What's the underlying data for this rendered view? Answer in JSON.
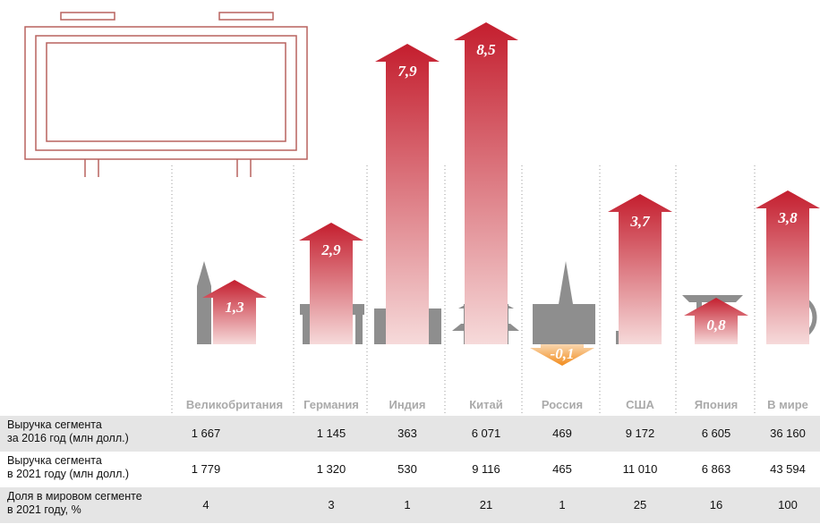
{
  "chart_data": {
    "type": "arrow",
    "categories": [
      "Великобритания",
      "Германия",
      "Индия",
      "Китай",
      "Россия",
      "США",
      "Япония",
      "В мире"
    ],
    "values": [
      1.3,
      2.9,
      7.9,
      8.5,
      -0.1,
      3.7,
      0.8,
      3.8
    ],
    "value_labels": [
      "1,3",
      "2,9",
      "7,9",
      "8,5",
      "-0,1",
      "3,7",
      "0,8",
      "3,8"
    ],
    "color": "#c41e2e",
    "negative_color": "#f28c1c"
  },
  "table": {
    "rows": [
      {
        "label": "Выручка сегмента\nза 2016 год (млн долл.)",
        "cells": [
          "1 667",
          "1 145",
          "363",
          "6 071",
          "469",
          "9 172",
          "6 605",
          "36 160"
        ]
      },
      {
        "label": "Выручка сегмента\nв 2021 году (млн долл.)",
        "cells": [
          "1 779",
          "1 320",
          "530",
          "9 116",
          "465",
          "11 010",
          "6 863",
          "43 594"
        ]
      },
      {
        "label": "Доля в мировом сегменте\nв 2021 году, %",
        "cells": [
          "4",
          "3",
          "1",
          "21",
          "1",
          "25",
          "16",
          "100"
        ]
      }
    ]
  }
}
